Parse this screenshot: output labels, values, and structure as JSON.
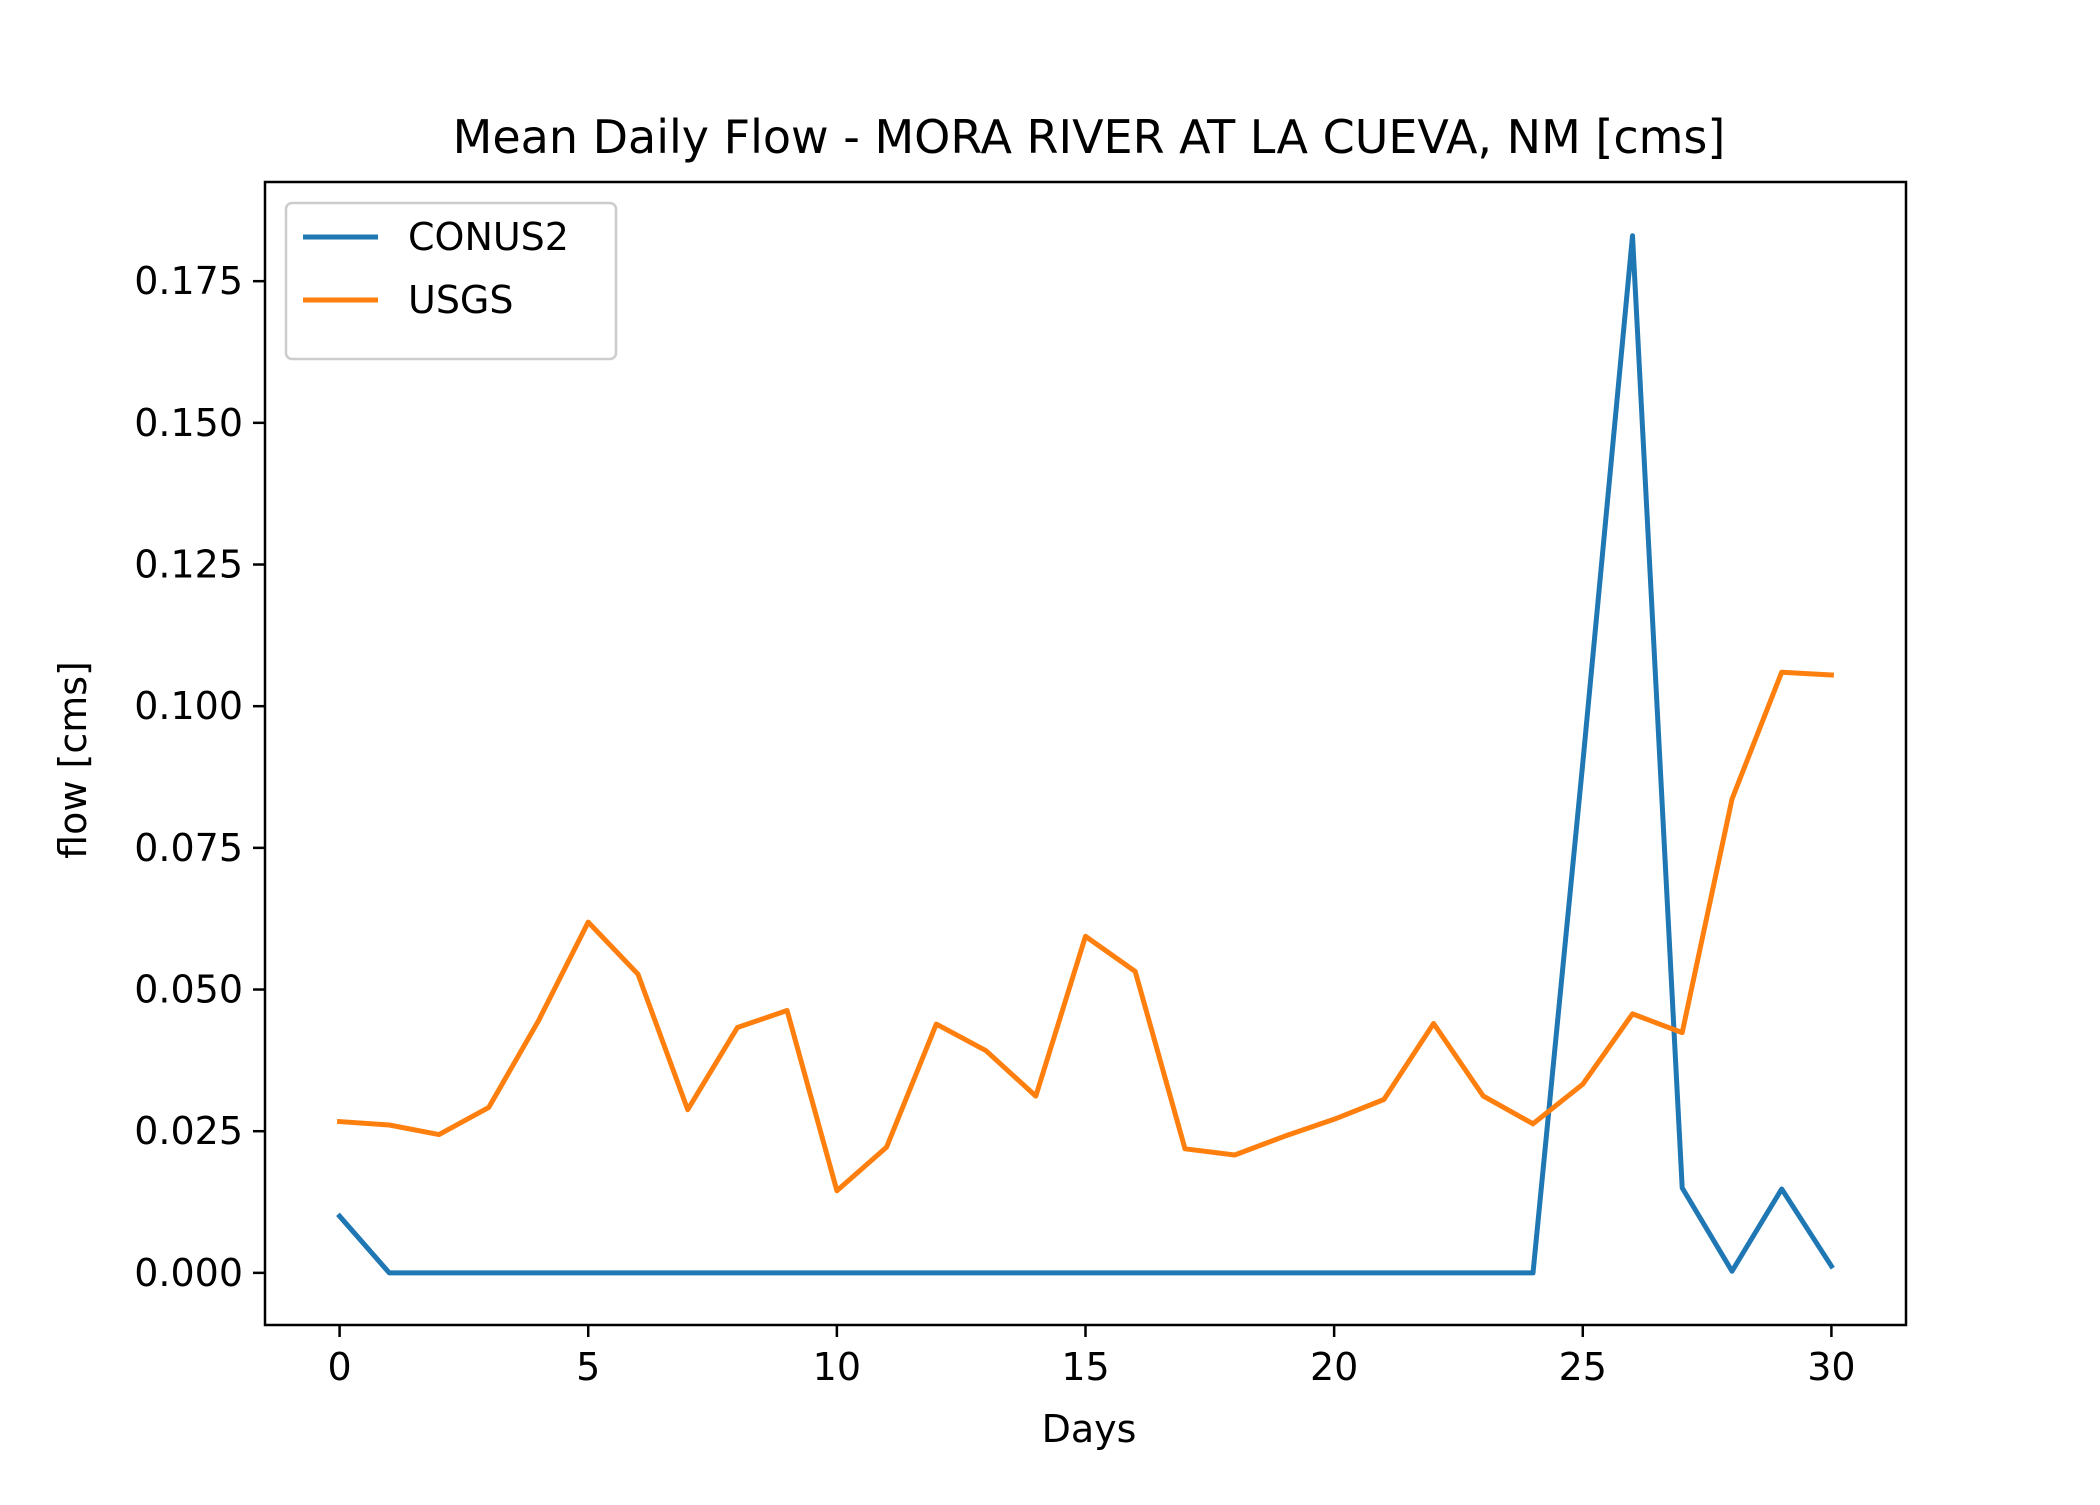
{
  "chart_data": {
    "type": "line",
    "title": "Mean Daily Flow - MORA RIVER AT LA CUEVA, NM [cms]",
    "xlabel": "Days",
    "ylabel": "flow [cms]",
    "xlim": [
      -1.5,
      31.5
    ],
    "ylim": [
      -0.0092,
      0.1925
    ],
    "xticks": [
      0,
      5,
      10,
      15,
      20,
      25,
      30
    ],
    "xtick_labels": [
      "0",
      "5",
      "10",
      "15",
      "20",
      "25",
      "30"
    ],
    "yticks": [
      0.0,
      0.025,
      0.05,
      0.075,
      0.1,
      0.125,
      0.15,
      0.175
    ],
    "ytick_labels": [
      "0.000",
      "0.025",
      "0.050",
      "0.075",
      "0.100",
      "0.125",
      "0.150",
      "0.175"
    ],
    "grid": false,
    "legend_position": "top-left",
    "x": [
      0,
      1,
      2,
      3,
      4,
      5,
      6,
      7,
      8,
      9,
      10,
      11,
      12,
      13,
      14,
      15,
      16,
      17,
      18,
      19,
      20,
      21,
      22,
      23,
      24,
      25,
      26,
      27,
      28,
      29,
      30
    ],
    "series": [
      {
        "name": "CONUS2",
        "color": "#1f77b4",
        "values": [
          0.01,
          0.0,
          0.0,
          0.0,
          0.0,
          0.0,
          0.0,
          0.0,
          0.0,
          0.0,
          0.0,
          0.0,
          0.0,
          0.0,
          0.0,
          0.0,
          0.0,
          0.0,
          0.0,
          0.0,
          0.0,
          0.0,
          0.0,
          0.0,
          0.0,
          0.09,
          0.183,
          0.015,
          0.0003,
          0.0148,
          0.0012
        ]
      },
      {
        "name": "USGS",
        "color": "#ff7f0e",
        "values": [
          0.0267,
          0.0261,
          0.0244,
          0.0292,
          0.0445,
          0.0619,
          0.0527,
          0.0288,
          0.0433,
          0.0463,
          0.0145,
          0.0222,
          0.0439,
          0.0392,
          0.0312,
          0.0594,
          0.0532,
          0.0219,
          0.0208,
          0.0241,
          0.0271,
          0.0306,
          0.044,
          0.0312,
          0.0263,
          0.0333,
          0.0457,
          0.0424,
          0.0836,
          0.106,
          0.1055
        ]
      }
    ]
  }
}
